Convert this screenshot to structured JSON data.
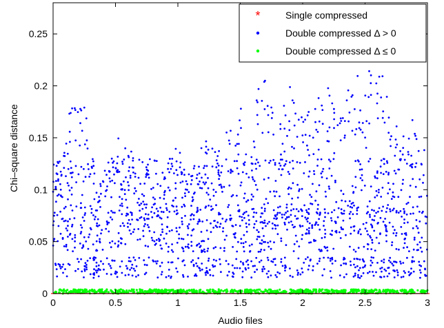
{
  "chart_data": {
    "type": "scatter",
    "title": "",
    "xlabel": "Audio files",
    "ylabel": "Chi–square distance",
    "xlim": [
      0,
      3
    ],
    "ylim": [
      0,
      0.28
    ],
    "x_ticks": [
      0,
      0.5,
      1,
      1.5,
      2,
      2.5,
      3
    ],
    "x_tick_labels": [
      "0",
      "0.5",
      "1",
      "1.5",
      "2",
      "2.5",
      "3"
    ],
    "y_ticks": [
      0,
      0.05,
      0.1,
      0.15,
      0.2,
      0.25
    ],
    "y_tick_labels": [
      "0",
      "0.05",
      "0.1",
      "0.15",
      "0.2",
      "0.25"
    ],
    "grid": false,
    "legend_position": "top-right",
    "series": [
      {
        "name": "Single compressed",
        "marker": "asterisk",
        "color": "#ff0000",
        "x_range": [
          0,
          3
        ],
        "y_level": 0.0,
        "x": [
          0,
          0.1,
          0.2,
          0.3,
          0.4,
          0.5,
          0.6,
          0.7,
          0.8,
          0.9,
          1.0,
          1.1,
          1.2,
          1.3,
          1.4,
          1.5,
          1.6,
          1.7,
          1.8,
          1.9,
          2.0,
          2.1,
          2.2,
          2.3,
          2.4,
          2.5,
          2.6,
          2.7,
          2.8,
          2.9,
          3.0
        ],
        "y": [
          0,
          0,
          0,
          0,
          0,
          0,
          0,
          0,
          0,
          0,
          0,
          0,
          0,
          0,
          0,
          0,
          0,
          0,
          0,
          0,
          0,
          0,
          0,
          0,
          0,
          0,
          0,
          0,
          0,
          0,
          0
        ]
      },
      {
        "name": "Double compressed Δ > 0",
        "marker": "dot",
        "color": "#0000ff",
        "x": [
          0.02,
          0.05,
          0.1,
          0.15,
          0.2,
          0.25,
          0.3,
          0.35,
          0.4,
          0.45,
          0.5,
          0.55,
          0.6,
          0.65,
          0.7,
          0.75,
          0.8,
          0.85,
          0.9,
          0.95,
          1.0,
          1.05,
          1.1,
          1.15,
          1.2,
          1.25,
          1.3,
          1.35,
          1.4,
          1.45,
          1.5,
          1.55,
          1.6,
          1.65,
          1.7,
          1.75,
          1.8,
          1.85,
          1.9,
          1.95,
          2.0,
          2.05,
          2.1,
          2.15,
          2.2,
          2.25,
          2.3,
          2.35,
          2.4,
          2.45,
          2.5,
          2.55,
          2.6,
          2.65,
          2.7,
          2.75,
          2.8,
          2.85,
          2.9,
          2.95
        ],
        "y": [
          0.12,
          0.13,
          0.15,
          0.18,
          0.2,
          0.19,
          0.14,
          0.11,
          0.12,
          0.14,
          0.15,
          0.13,
          0.15,
          0.14,
          0.1,
          0.12,
          0.11,
          0.1,
          0.12,
          0.13,
          0.14,
          0.12,
          0.12,
          0.13,
          0.14,
          0.15,
          0.15,
          0.14,
          0.16,
          0.15,
          0.18,
          0.15,
          0.15,
          0.2,
          0.22,
          0.18,
          0.17,
          0.19,
          0.2,
          0.19,
          0.19,
          0.19,
          0.18,
          0.19,
          0.2,
          0.19,
          0.18,
          0.2,
          0.21,
          0.22,
          0.2,
          0.22,
          0.23,
          0.22,
          0.18,
          0.17,
          0.16,
          0.15,
          0.17,
          0.15
        ],
        "bands": [
          {
            "label_y": 0.025,
            "y_min": 0.015,
            "y_max": 0.035
          },
          {
            "label_y": 0.05,
            "y_min": 0.04,
            "y_max": 0.065
          },
          {
            "label_y": 0.075,
            "y_min": 0.065,
            "y_max": 0.085
          },
          {
            "label_y": 0.1,
            "y_min": 0.085,
            "y_max": 0.13
          }
        ]
      },
      {
        "name": "Double compressed Δ ≤ 0",
        "marker": "dot",
        "color": "#00ff00",
        "x_range": [
          0,
          3
        ],
        "y_level": 0.002,
        "x": [
          0,
          0.25,
          0.5,
          0.75,
          1.0,
          1.25,
          1.5,
          1.75,
          2.0,
          2.25,
          2.5,
          2.75,
          3.0
        ],
        "y": [
          0.002,
          0.002,
          0.002,
          0.002,
          0.002,
          0.002,
          0.002,
          0.002,
          0.002,
          0.002,
          0.002,
          0.002,
          0.002
        ]
      }
    ]
  }
}
